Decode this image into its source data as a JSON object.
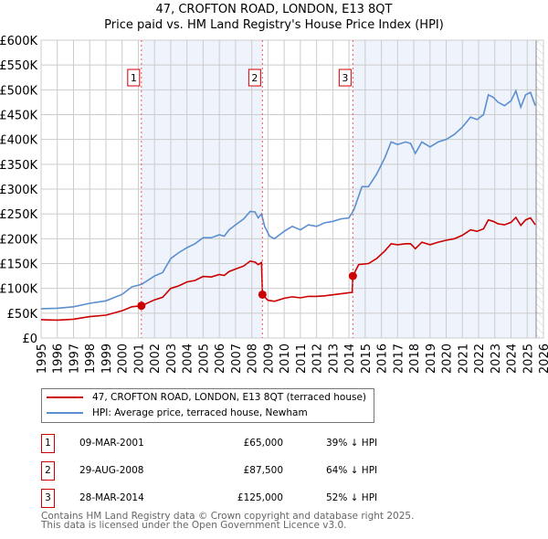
{
  "chart_data": {
    "type": "line",
    "title": "47, CROFTON ROAD, LONDON, E13 8QT",
    "subtitle": "Price paid vs. HM Land Registry's House Price Index (HPI)",
    "xlim": [
      1995,
      2026
    ],
    "ylim": [
      0,
      600000
    ],
    "y_ticks": [
      "£0",
      "£50K",
      "£100K",
      "£150K",
      "£200K",
      "£250K",
      "£300K",
      "£350K",
      "£400K",
      "£450K",
      "£500K",
      "£550K",
      "£600K"
    ],
    "x_ticks": [
      "1995",
      "1996",
      "1997",
      "1998",
      "1999",
      "2000",
      "2001",
      "2002",
      "2003",
      "2004",
      "2005",
      "2006",
      "2007",
      "2008",
      "2009",
      "2010",
      "2011",
      "2012",
      "2013",
      "2014",
      "2015",
      "2016",
      "2017",
      "2018",
      "2019",
      "2020",
      "2021",
      "2022",
      "2023",
      "2024",
      "2025",
      "2026"
    ],
    "grid": true,
    "data_end_year": 2025.55,
    "colors": {
      "property": "#cc0000",
      "hpi": "#5b8fd0",
      "shade": "#eef3fc"
    },
    "series": [
      {
        "name": "47, CROFTON ROAD, LONDON, E13 8QT (terraced house)",
        "color": "#cc0000",
        "x": [
          1995,
          1996,
          1997,
          1998,
          1999,
          2000,
          2000.6,
          2001.19,
          2002,
          2002.5,
          2003,
          2003.5,
          2004,
          2004.5,
          2005,
          2005.5,
          2006,
          2006.3,
          2006.6,
          2007,
          2007.5,
          2007.9,
          2008.2,
          2008.4,
          2008.6,
          2008.66,
          2009,
          2009.4,
          2010,
          2010.5,
          2011,
          2011.5,
          2012,
          2012.5,
          2013,
          2013.5,
          2014.2,
          2014.24,
          2014.6,
          2015.2,
          2015.7,
          2016.2,
          2016.6,
          2017,
          2017.5,
          2017.8,
          2018.1,
          2018.5,
          2019,
          2019.5,
          2020,
          2020.5,
          2021,
          2021.5,
          2021.9,
          2022.3,
          2022.6,
          2022.9,
          2023.2,
          2023.6,
          2024,
          2024.3,
          2024.6,
          2024.9,
          2025.2,
          2025.5
        ],
        "values": [
          37000,
          36000,
          38000,
          43000,
          46000,
          55000,
          63000,
          65000,
          77000,
          82000,
          100000,
          105000,
          113000,
          116000,
          124000,
          123000,
          128000,
          126000,
          134000,
          139000,
          145000,
          155000,
          153000,
          148000,
          152000,
          87500,
          76000,
          74000,
          80000,
          83000,
          81000,
          84000,
          84000,
          85000,
          87000,
          89000,
          92000,
          125000,
          148000,
          150000,
          160000,
          175000,
          190000,
          188000,
          190000,
          190000,
          180000,
          193000,
          188000,
          193000,
          197000,
          200000,
          207000,
          218000,
          215000,
          220000,
          238000,
          235000,
          230000,
          228000,
          233000,
          243000,
          227000,
          238000,
          242000,
          228000
        ]
      },
      {
        "name": "HPI: Average price, terraced house, Newham",
        "color": "#5b8fd0",
        "x": [
          1995,
          1996,
          1997,
          1998,
          1999,
          2000,
          2000.6,
          2001.2,
          2002,
          2002.5,
          2003,
          2003.5,
          2004,
          2004.5,
          2005,
          2005.5,
          2006,
          2006.3,
          2006.6,
          2007,
          2007.5,
          2007.9,
          2008.2,
          2008.4,
          2008.6,
          2008.8,
          2009.1,
          2009.4,
          2010,
          2010.5,
          2011,
          2011.5,
          2012,
          2012.5,
          2013,
          2013.5,
          2014,
          2014.3,
          2014.8,
          2015.2,
          2015.7,
          2016.2,
          2016.6,
          2017,
          2017.5,
          2017.8,
          2018.1,
          2018.5,
          2019,
          2019.5,
          2020,
          2020.5,
          2021,
          2021.5,
          2021.9,
          2022.3,
          2022.6,
          2022.9,
          2023.2,
          2023.6,
          2024,
          2024.3,
          2024.6,
          2024.9,
          2025.2,
          2025.5
        ],
        "values": [
          59000,
          60000,
          63000,
          70000,
          75000,
          88000,
          103000,
          108000,
          125000,
          132000,
          160000,
          172000,
          182000,
          190000,
          202000,
          202000,
          208000,
          205000,
          218000,
          228000,
          240000,
          255000,
          254000,
          242000,
          250000,
          225000,
          205000,
          200000,
          215000,
          225000,
          218000,
          228000,
          225000,
          232000,
          235000,
          240000,
          242000,
          258000,
          305000,
          305000,
          330000,
          362000,
          395000,
          390000,
          395000,
          392000,
          372000,
          395000,
          385000,
          395000,
          400000,
          410000,
          425000,
          445000,
          440000,
          450000,
          490000,
          485000,
          475000,
          468000,
          478000,
          498000,
          465000,
          490000,
          495000,
          468000
        ]
      }
    ],
    "annotations": [
      {
        "label": "1",
        "x": 2001.19,
        "value": 65000
      },
      {
        "label": "2",
        "x": 2008.66,
        "value": 87500
      },
      {
        "label": "3",
        "x": 2014.24,
        "value": 125000
      }
    ]
  },
  "legend": {
    "property": "47, CROFTON ROAD, LONDON, E13 8QT (terraced house)",
    "hpi": "HPI: Average price, terraced house, Newham"
  },
  "header": {
    "title": "47, CROFTON ROAD, LONDON, E13 8QT",
    "subtitle": "Price paid vs. HM Land Registry's House Price Index (HPI)"
  },
  "transactions": [
    {
      "num": "1",
      "date": "09-MAR-2001",
      "price": "£65,000",
      "hpi": "39% ↓ HPI"
    },
    {
      "num": "2",
      "date": "29-AUG-2008",
      "price": "£87,500",
      "hpi": "64% ↓ HPI"
    },
    {
      "num": "3",
      "date": "28-MAR-2014",
      "price": "£125,000",
      "hpi": "52% ↓ HPI"
    }
  ],
  "footer": {
    "line1": "Contains HM Land Registry data © Crown copyright and database right 2025.",
    "line2": "This data is licensed under the Open Government Licence v3.0."
  }
}
